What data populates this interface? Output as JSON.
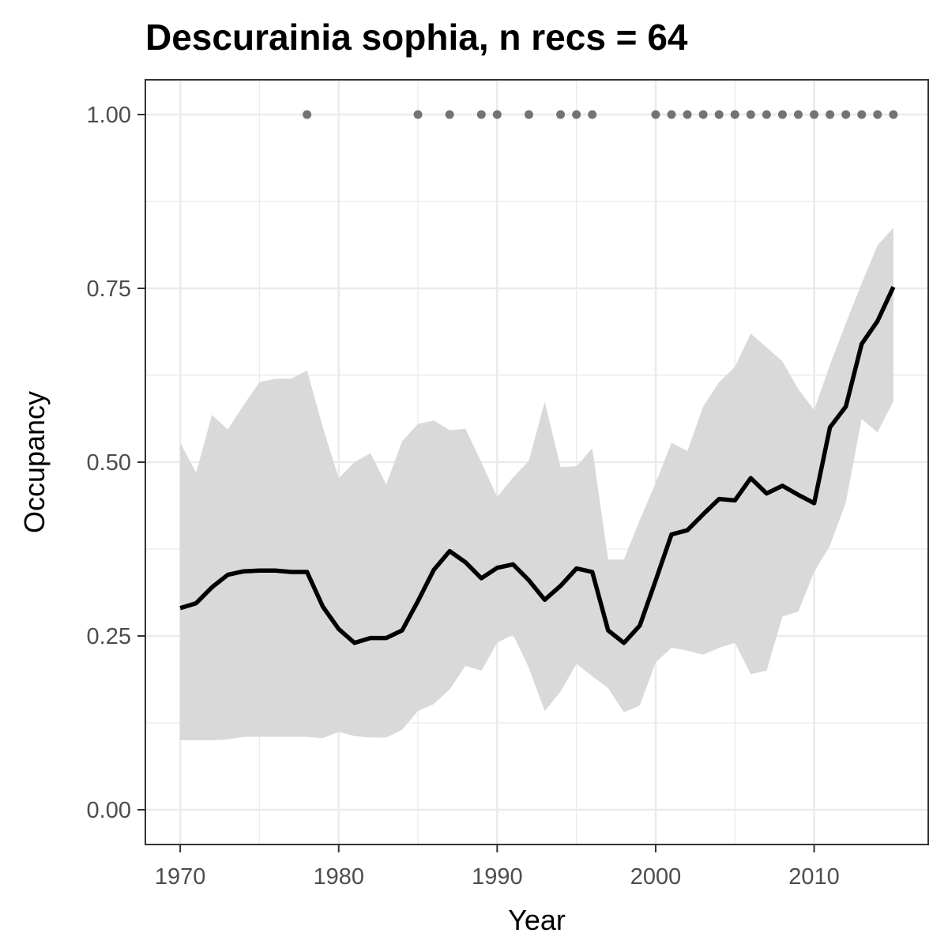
{
  "chart_data": {
    "type": "line",
    "title": "Descurainia sophia, n recs = 64",
    "xlabel": "Year",
    "ylabel": "Occupancy",
    "xlim": [
      1967.8,
      2017.2
    ],
    "ylim": [
      -0.05,
      1.05
    ],
    "x_ticks": [
      1970,
      1980,
      1990,
      2000,
      2010
    ],
    "x_tick_labels": [
      "1970",
      "1980",
      "1990",
      "2000",
      "2010"
    ],
    "y_ticks": [
      0,
      0.25,
      0.5,
      0.75,
      1.0
    ],
    "y_tick_labels": [
      "0.00",
      "0.25",
      "0.50",
      "0.75",
      "1.00"
    ],
    "grid": true,
    "legend": "none",
    "colors": {
      "line": "#000000",
      "ribbon": "#d9d9d9",
      "points": "#737373",
      "grid": "#ebebeb",
      "panel_border": "#333333"
    },
    "series": [
      {
        "type": "line",
        "x": [
          1970,
          1971,
          1972,
          1973,
          1974,
          1975,
          1976,
          1977,
          1978,
          1979,
          1980,
          1981,
          1982,
          1983,
          1984,
          1985,
          1986,
          1987,
          1988,
          1989,
          1990,
          1991,
          1992,
          1993,
          1994,
          1995,
          1996,
          1997,
          1998,
          1999,
          2000,
          2001,
          2002,
          2003,
          2004,
          2005,
          2006,
          2007,
          2008,
          2009,
          2010,
          2011,
          2012,
          2013,
          2014,
          2015
        ],
        "y": [
          0.29,
          0.297,
          0.32,
          0.338,
          0.343,
          0.344,
          0.344,
          0.342,
          0.342,
          0.292,
          0.26,
          0.24,
          0.247,
          0.247,
          0.258,
          0.3,
          0.345,
          0.372,
          0.356,
          0.333,
          0.348,
          0.353,
          0.33,
          0.302,
          0.322,
          0.347,
          0.342,
          0.258,
          0.24,
          0.265,
          0.33,
          0.396,
          0.402,
          0.425,
          0.447,
          0.445,
          0.477,
          0.455,
          0.466,
          0.453,
          0.441,
          0.55,
          0.58,
          0.67,
          0.703,
          0.752
        ]
      },
      {
        "type": "ribbon",
        "x": [
          1970,
          1971,
          1972,
          1973,
          1974,
          1975,
          1976,
          1977,
          1978,
          1979,
          1980,
          1981,
          1982,
          1983,
          1984,
          1985,
          1986,
          1987,
          1988,
          1989,
          1990,
          1991,
          1992,
          1993,
          1994,
          1995,
          1996,
          1997,
          1998,
          1999,
          2000,
          2001,
          2002,
          2003,
          2004,
          2005,
          2006,
          2007,
          2008,
          2009,
          2010,
          2011,
          2012,
          2013,
          2014,
          2015
        ],
        "lower": [
          0.1,
          0.1,
          0.1,
          0.101,
          0.105,
          0.105,
          0.105,
          0.105,
          0.105,
          0.103,
          0.112,
          0.106,
          0.104,
          0.104,
          0.115,
          0.142,
          0.152,
          0.173,
          0.207,
          0.2,
          0.24,
          0.252,
          0.204,
          0.142,
          0.17,
          0.21,
          0.192,
          0.175,
          0.14,
          0.15,
          0.212,
          0.233,
          0.229,
          0.223,
          0.233,
          0.24,
          0.195,
          0.2,
          0.278,
          0.285,
          0.342,
          0.38,
          0.442,
          0.562,
          0.543,
          0.588
        ],
        "upper": [
          0.528,
          0.485,
          0.568,
          0.547,
          0.582,
          0.615,
          0.62,
          0.62,
          0.632,
          0.55,
          0.477,
          0.5,
          0.513,
          0.468,
          0.53,
          0.555,
          0.56,
          0.546,
          0.548,
          0.5,
          0.45,
          0.478,
          0.502,
          0.587,
          0.493,
          0.494,
          0.52,
          0.36,
          0.36,
          0.417,
          0.47,
          0.528,
          0.516,
          0.58,
          0.615,
          0.637,
          0.685,
          0.665,
          0.645,
          0.605,
          0.575,
          0.64,
          0.7,
          0.757,
          0.812,
          0.837
        ]
      },
      {
        "type": "scatter",
        "x": [
          1978,
          1985,
          1987,
          1989,
          1990,
          1992,
          1994,
          1995,
          1996,
          2000,
          2001,
          2002,
          2003,
          2004,
          2005,
          2006,
          2007,
          2008,
          2009,
          2010,
          2011,
          2012,
          2013,
          2014,
          2015
        ],
        "y": [
          1,
          1,
          1,
          1,
          1,
          1,
          1,
          1,
          1,
          1,
          1,
          1,
          1,
          1,
          1,
          1,
          1,
          1,
          1,
          1,
          1,
          1,
          1,
          1,
          1
        ]
      }
    ]
  }
}
